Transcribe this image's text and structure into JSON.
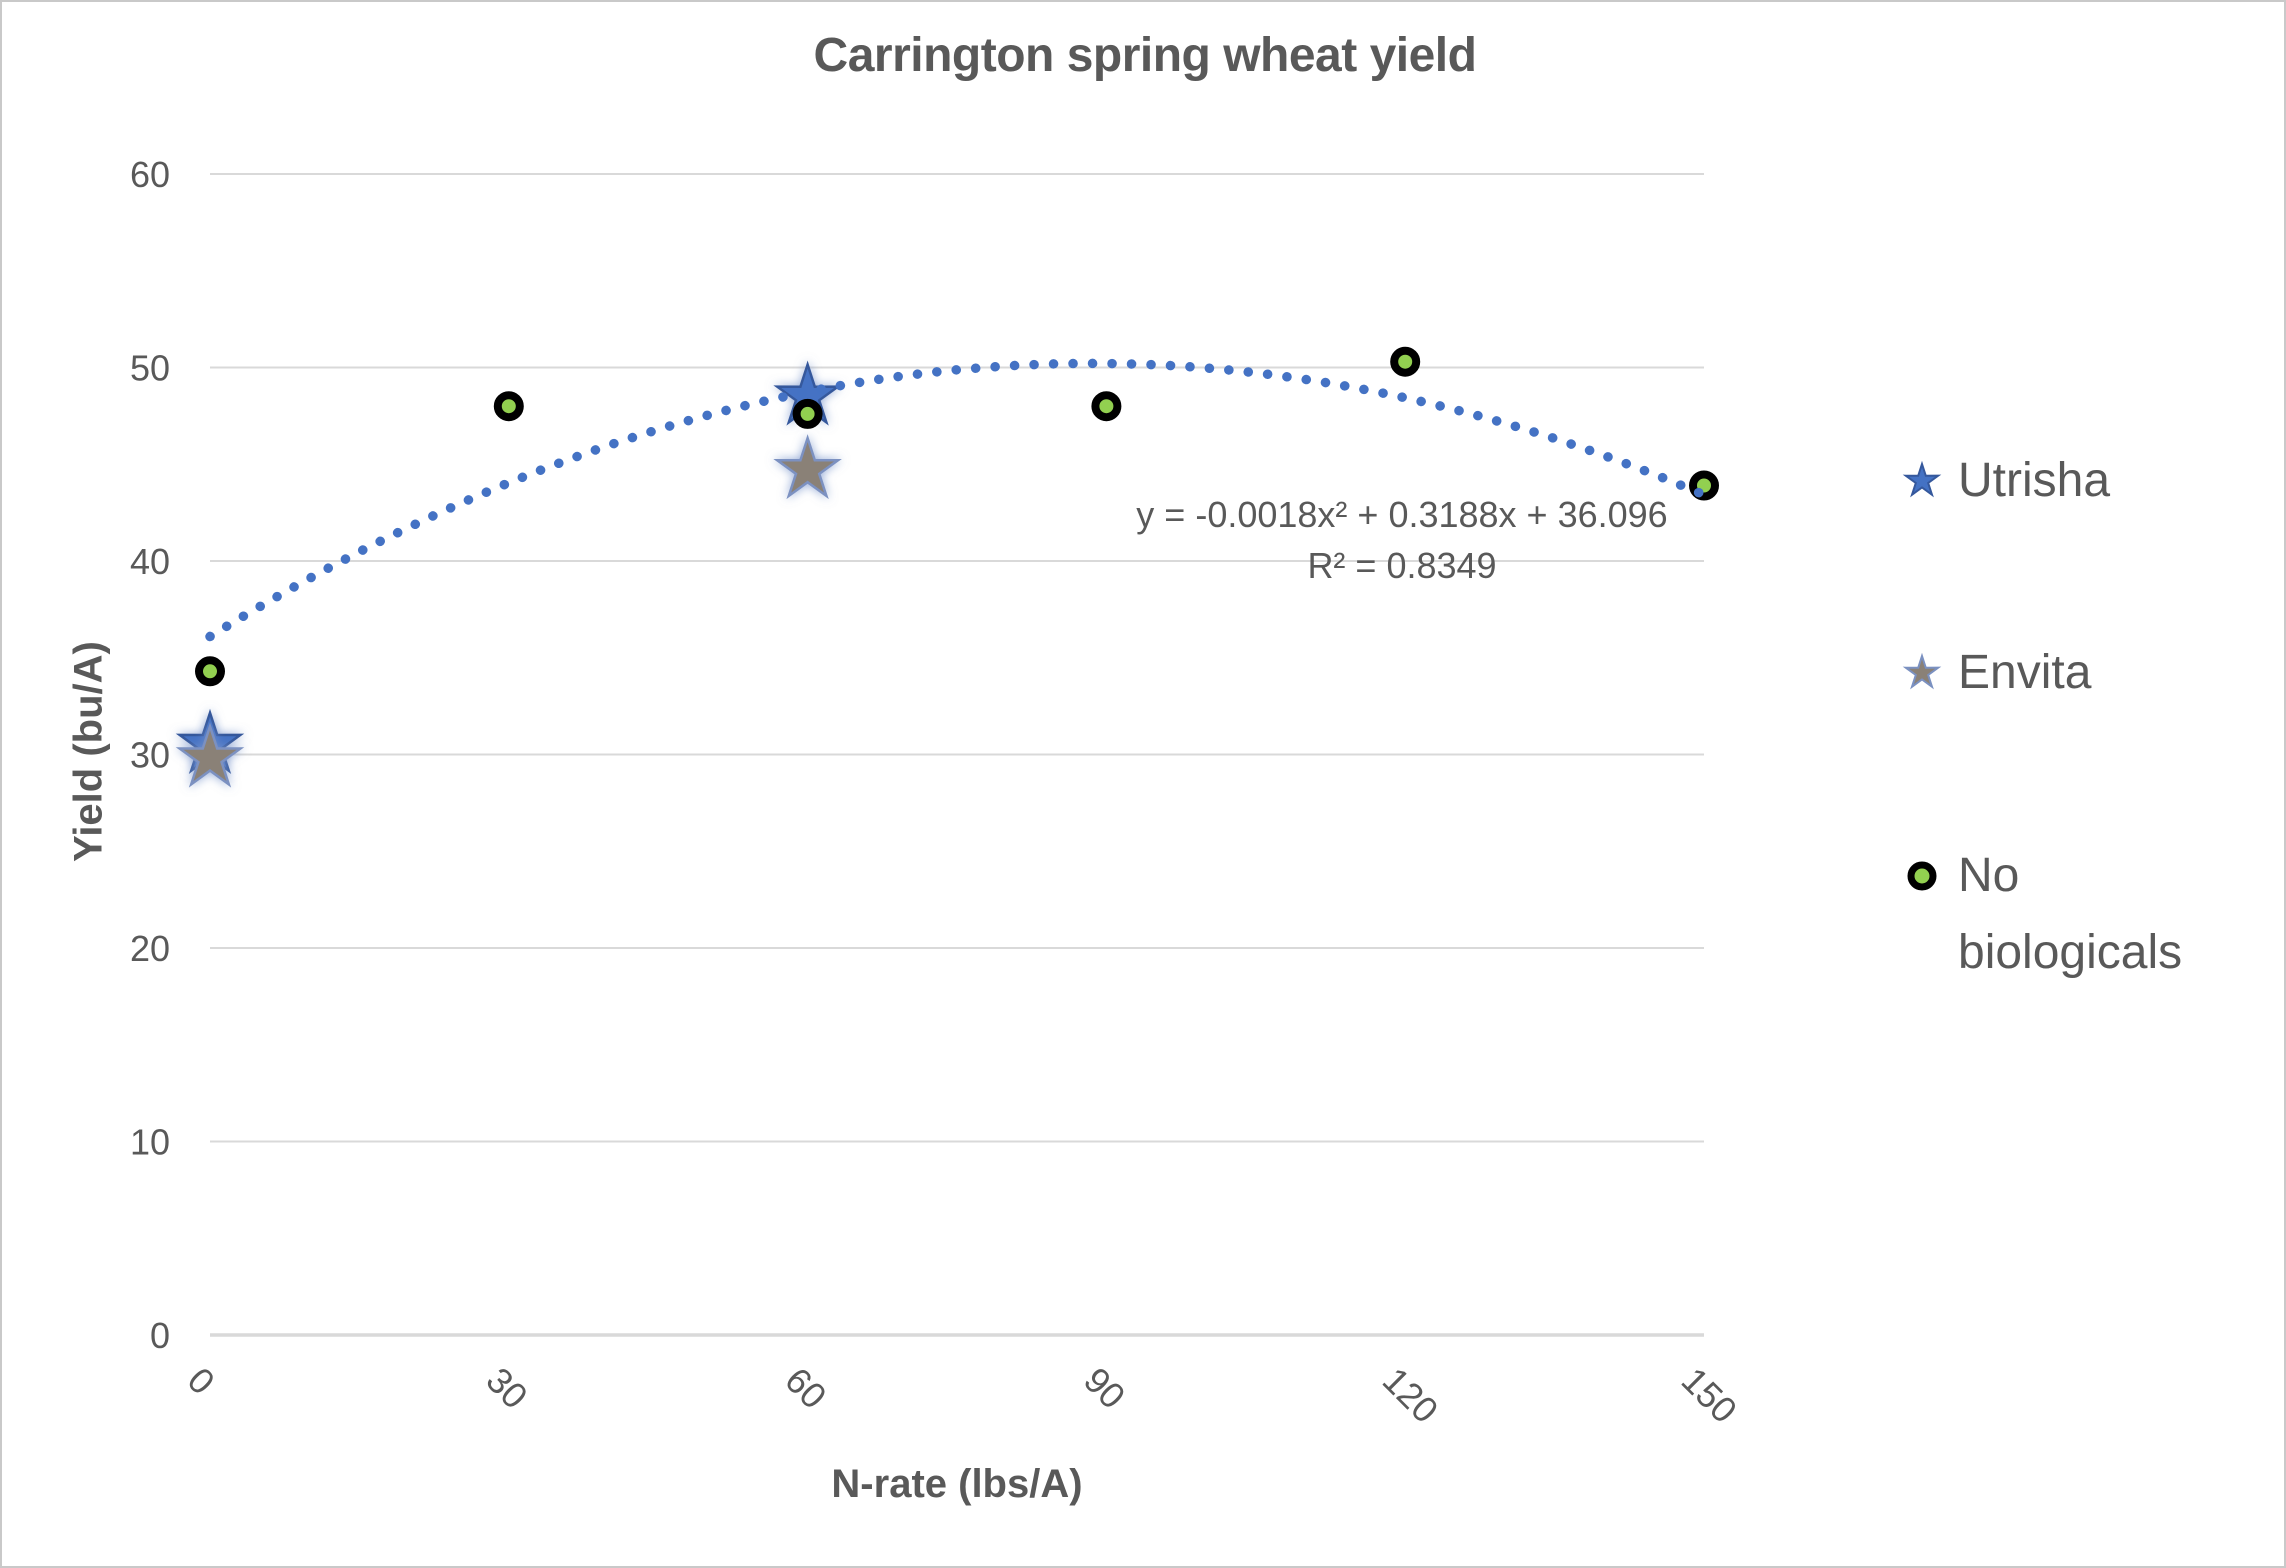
{
  "chart_data": {
    "type": "scatter",
    "title": "Carrington spring wheat yield",
    "xlabel": "N-rate (lbs/A)",
    "ylabel": "Yield (bu/A)",
    "xlim": [
      0,
      150
    ],
    "ylim": [
      0,
      60
    ],
    "x_ticks": [
      0,
      30,
      60,
      90,
      120,
      150
    ],
    "y_ticks": [
      0,
      10,
      20,
      30,
      40,
      50,
      60
    ],
    "grid": "horizontal",
    "legend_position": "right",
    "series": [
      {
        "name": "Utrisha",
        "marker": "star",
        "color": "#4472c4",
        "border": "#35589c",
        "points": [
          [
            0,
            30.5
          ],
          [
            60,
            48.5
          ]
        ]
      },
      {
        "name": "Envita",
        "marker": "star",
        "color": "#8a8177",
        "border": "#7b91c1",
        "points": [
          [
            0,
            29.8
          ],
          [
            60,
            44.7
          ]
        ]
      },
      {
        "name": "No biologicals",
        "marker": "circle",
        "color": "#92d050",
        "border": "#000000",
        "points": [
          [
            0,
            34.3
          ],
          [
            30,
            48.0
          ],
          [
            60,
            47.6
          ],
          [
            90,
            48.0
          ],
          [
            120,
            50.3
          ],
          [
            150,
            43.9
          ]
        ]
      }
    ],
    "trendline": {
      "applies_to": "No biologicals",
      "type": "polynomial",
      "degree": 2,
      "coefficients": [
        -0.0018,
        0.3188,
        36.096
      ],
      "equation": "y = -0.0018x² + 0.3188x + 36.096",
      "r_squared": "R² = 0.8349",
      "color": "#4472c4",
      "style": "dotted",
      "x_range": [
        0,
        150
      ]
    },
    "colors": {
      "text": "#595959",
      "grid": "#d9d9d9",
      "background": "#ffffff",
      "canvas_border": "#c9c9c9"
    }
  }
}
